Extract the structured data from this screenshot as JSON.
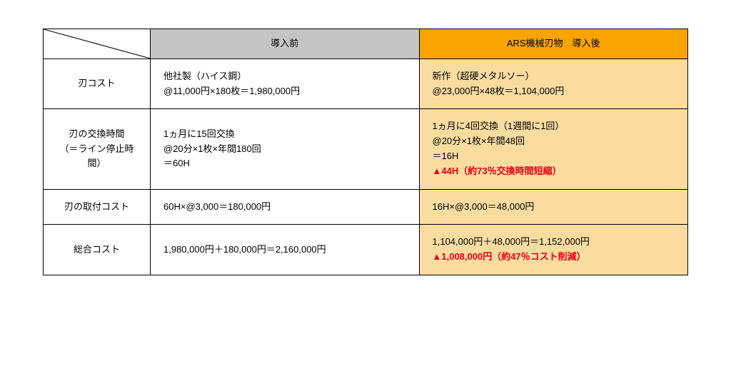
{
  "header": {
    "before": "導入前",
    "after": "ARS機械刃物　導入後"
  },
  "rows": [
    {
      "label": "刃コスト",
      "before": [
        "他社製（ハイス鋼）",
        "@11,000円×180枚＝1,980,000円"
      ],
      "after": [
        "新作（超硬メタルソー）",
        "@23,000円×48枚＝1,104,000円"
      ]
    },
    {
      "label": "刃の交換時間\n（＝ライン停止時間）",
      "before": [
        "1ヵ月に15回交換",
        "@20分×1枚×年間180回",
        "＝60H"
      ],
      "after": [
        "1ヵ月に4回交換（1週間に1回）",
        "@20分×1枚×年間48回",
        "＝16H"
      ],
      "after_highlight": "▲44H（約73％交換時間短縮）"
    },
    {
      "label": "刃の取付コスト",
      "before": [
        "60H×@3,000＝180,000円"
      ],
      "after": [
        "16H×@3,000＝48,000円"
      ]
    },
    {
      "label": "総合コスト",
      "before": [
        "1,980,000円＋180,000円＝2,160,000円"
      ],
      "after": [
        "1,104,000円＋48,000円＝1,152,000円"
      ],
      "after_highlight": "▲1,008,000円（約47％コスト削減）"
    }
  ],
  "colors": {
    "header_before_bg": "#c5c5c5",
    "header_after_bg": "#f9a400",
    "after_cell_bg": "#fbdca0",
    "highlight_text": "#e60012",
    "border": "#000000"
  }
}
